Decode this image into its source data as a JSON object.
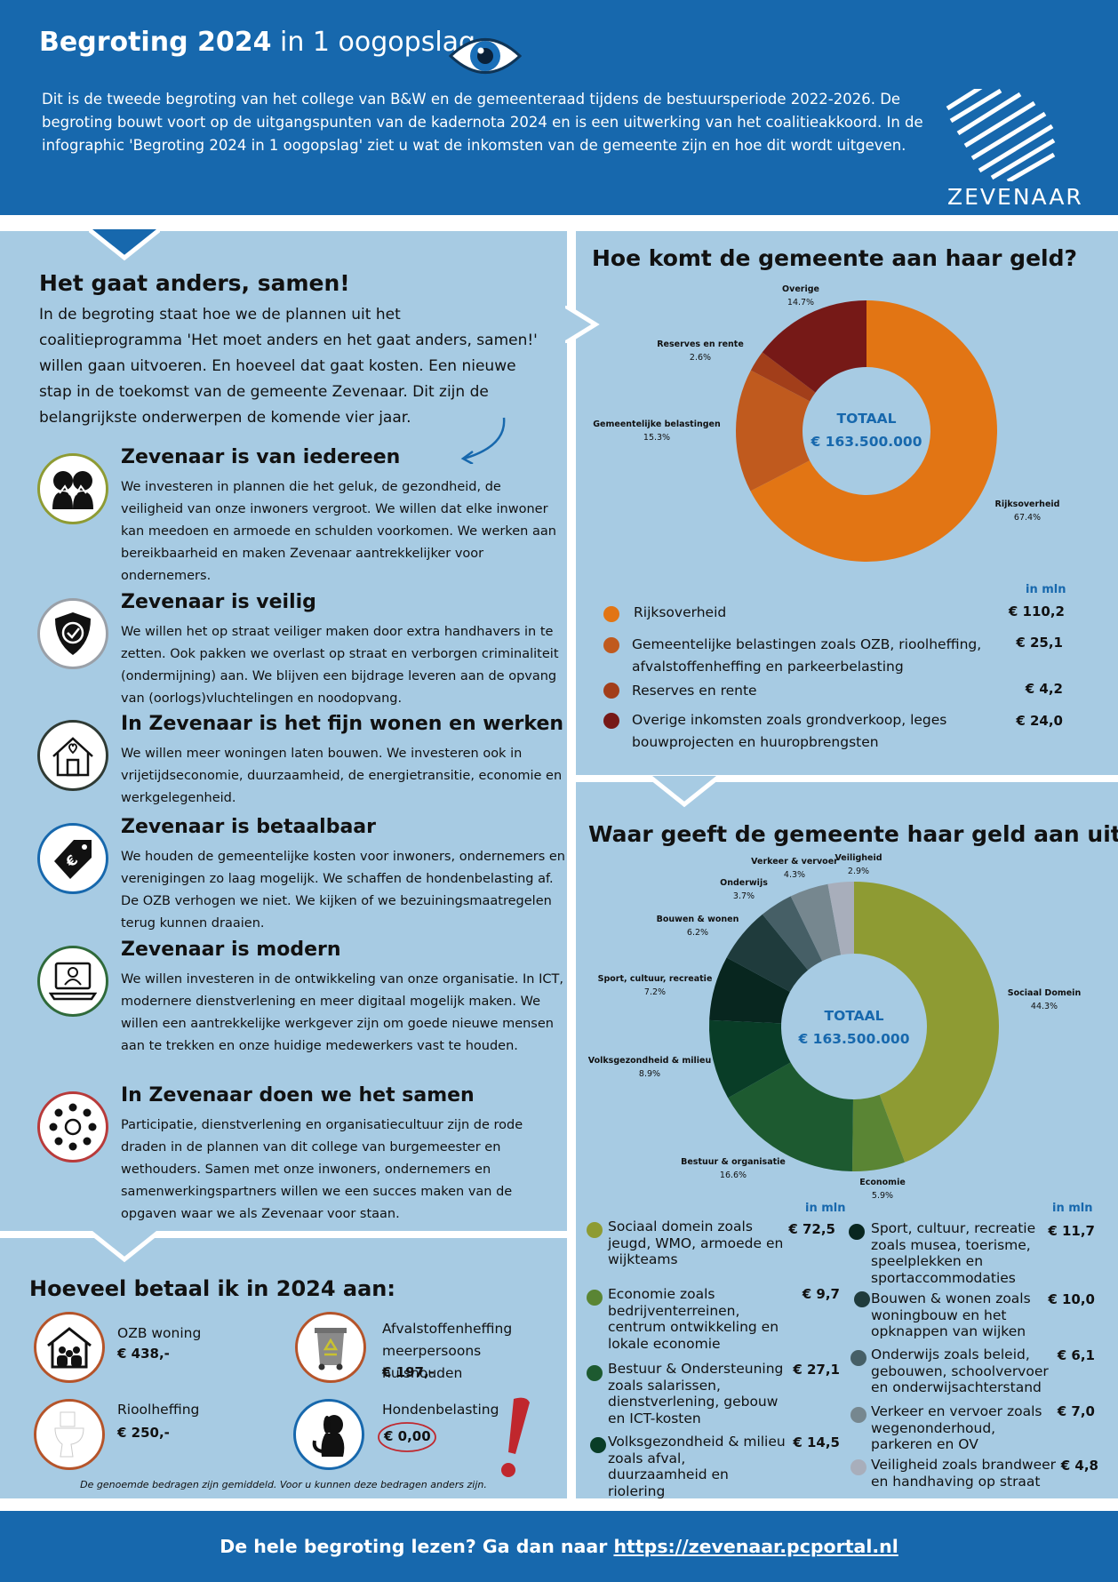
{
  "header": {
    "title_bold": "Begroting 2024",
    "title_rest": "in 1 oogopslag",
    "intro": "Dit is de tweede begroting van het college van B&W en de gemeenteraad tijdens de bestuursperiode 2022-2026. De begroting bouwt voort op de uitgangspunten van de kadernota 2024 en is een uitwerking van het coalitieakkoord. In de infographic 'Begroting 2024 in 1 oogopslag' ziet u wat de inkomsten van de gemeente zijn en hoe dit wordt uitgeven.",
    "logo_text": "ZEVENAAR"
  },
  "left": {
    "heading": "Het gaat anders, samen!",
    "intro": "In de begroting staat hoe we de plannen uit het coalitieprogramma 'Het moet anders en het gaat anders, samen!' willen gaan uitvoeren. En hoeveel dat gaat kosten. Een nieuwe stap in de toekomst van de gemeente Zevenaar. Dit zijn de belangrijkste onderwerpen de komende vier jaar.",
    "topics": [
      {
        "title": "Zevenaar is van iedereen",
        "icon": "people-icon",
        "text": "We investeren in plannen die het geluk, de gezondheid, de veiligheid van onze inwoners vergroot. We willen dat elke inwoner kan meedoen en armoede en schulden voorkomen. We werken aan bereikbaarheid en maken Zevenaar aantrekkelijker voor ondernemers."
      },
      {
        "title": "Zevenaar is veilig",
        "icon": "shield-icon",
        "text": "We willen het op straat veiliger maken door extra handhavers in te zetten. Ook pakken we overlast op straat en verborgen criminaliteit (ondermijning) aan. We blijven een bijdrage leveren aan de opvang van (oorlogs)vluchtelingen en noodopvang."
      },
      {
        "title": "In Zevenaar is het fijn wonen en werken",
        "icon": "house-heart-icon",
        "text": "We willen meer woningen laten bouwen. We investeren ook in vrijetijdseconomie, duurzaamheid, de energietransitie, economie en werkgelegenheid."
      },
      {
        "title": "Zevenaar is betaalbaar",
        "icon": "euro-tag-icon",
        "text": "We houden de gemeentelijke kosten voor inwoners, ondernemers en verenigingen zo laag mogelijk. We schaffen de hondenbelasting af. De OZB verhogen we niet. We kijken of we bezuiningsmaatregelen terug kunnen draaien."
      },
      {
        "title": "Zevenaar is modern",
        "icon": "laptop-icon",
        "text": "We willen investeren in de ontwikkeling van onze organisatie. In ICT, modernere dienstverlening en meer digitaal mogelijk maken. We willen een aantrekkelijke werkgever zijn om goede nieuwe mensen aan te trekken en onze huidige medewerkers vast te houden."
      },
      {
        "title": "In Zevenaar doen we het samen",
        "icon": "community-icon",
        "text": "Participatie, dienstverlening en organisatiecultuur zijn de rode draden in de plannen van dit college van burgemeester en wethouders. Samen met onze inwoners, ondernemers en samenwerkingspartners willen we een succes maken van de opgaven waar we als Zevenaar voor staan."
      }
    ]
  },
  "costs": {
    "heading": "Hoeveel betaal ik in 2024 aan:",
    "items": [
      {
        "label": "OZB woning",
        "amount": "€ 438,-"
      },
      {
        "label": "Afvalstoffenheffing meerpersoons huishouden",
        "amount": "€ 197,-"
      },
      {
        "label": "Rioolheffing",
        "amount": "€ 250,-"
      },
      {
        "label": "Hondenbelasting",
        "amount": "€ 0,00"
      }
    ],
    "note": "De genoemde bedragen zijn gemiddeld. Voor u kunnen deze bedragen anders zijn."
  },
  "chart_data": [
    {
      "type": "pie",
      "title": "Hoe komt de gemeente aan haar geld?",
      "center_label": [
        "TOTAAL",
        "€ 163.500.000"
      ],
      "categories": [
        "Rijksoverheid",
        "Gemeentelijke belastingen",
        "Reserves en rente",
        "Overige"
      ],
      "pct_labels": [
        "67.4%",
        "15.3%",
        "2.6%",
        "14.7%"
      ],
      "values": [
        67.4,
        15.3,
        2.6,
        14.7
      ],
      "colors": [
        "#e27514",
        "#c05a1e",
        "#a23e1a",
        "#761917"
      ],
      "unit_label": "in mln",
      "legend": [
        {
          "label": "Rijksoverheid",
          "amount": "€ 110,2"
        },
        {
          "label": "Gemeentelijke belastingen zoals OZB, rioolheffing, afvalstoffenheffing en parkeerbelasting",
          "amount": "€ 25,1"
        },
        {
          "label": "Reserves en rente",
          "amount": "€ 4,2"
        },
        {
          "label": "Overige inkomsten zoals grondverkoop, leges bouwprojecten en huuropbrengsten",
          "amount": "€ 24,0"
        }
      ]
    },
    {
      "type": "pie",
      "title": "Waar geeft de gemeente haar geld aan uit?",
      "center_label": [
        "TOTAAL",
        "€ 163.500.000"
      ],
      "categories": [
        "Sociaal Domein",
        "Economie",
        "Bestuur & organisatie",
        "Volksgezondheid & milieu",
        "Sport, cultuur, recreatie",
        "Bouwen & wonen",
        "Onderwijs",
        "Verkeer & vervoer",
        "Veiligheid"
      ],
      "pct_labels": [
        "44.3%",
        "5.9%",
        "16.6%",
        "8.9%",
        "7.2%",
        "6.2%",
        "3.7%",
        "4.3%",
        "2.9%"
      ],
      "values": [
        44.3,
        5.9,
        16.6,
        8.9,
        7.2,
        6.2,
        3.7,
        4.3,
        2.9
      ],
      "colors": [
        "#8e9b33",
        "#5a8534",
        "#1d5a30",
        "#093d27",
        "#08261f",
        "#1f3b3c",
        "#465f66",
        "#76878f",
        "#a8aebb"
      ],
      "unit_label": "in mln",
      "legend": [
        {
          "label": "Sociaal domein zoals jeugd, WMO, armoede en wijkteams",
          "amount": "€ 72,5"
        },
        {
          "label": "Economie zoals bedrijventerreinen, centrum ontwikkeling en lokale economie",
          "amount": "€ 9,7"
        },
        {
          "label": "Bestuur & Ondersteuning zoals salarissen, dienstverlening, gebouw en ICT-kosten",
          "amount": "€ 27,1"
        },
        {
          "label": "Volksgezondheid & milieu zoals afval, duurzaamheid en riolering",
          "amount": "€ 14,5"
        },
        {
          "label": "Sport, cultuur, recreatie zoals musea, toerisme, speelplekken en sportaccommodaties",
          "amount": "€ 11,7"
        },
        {
          "label": "Bouwen & wonen zoals woningbouw en het opknappen van wijken",
          "amount": "€ 10,0"
        },
        {
          "label": "Onderwijs zoals beleid, gebouwen, schoolvervoer en onderwijsachterstand",
          "amount": "€ 6,1"
        },
        {
          "label": "Verkeer en vervoer zoals wegenonderhoud, parkeren en OV",
          "amount": "€ 7,0"
        },
        {
          "label": "Veiligheid zoals brandweer en handhaving op straat",
          "amount": "€ 4,8"
        }
      ]
    }
  ],
  "footer": {
    "text": "De hele begroting lezen? Ga dan naar",
    "link": "https://zevenaar.pcportal.nl"
  }
}
